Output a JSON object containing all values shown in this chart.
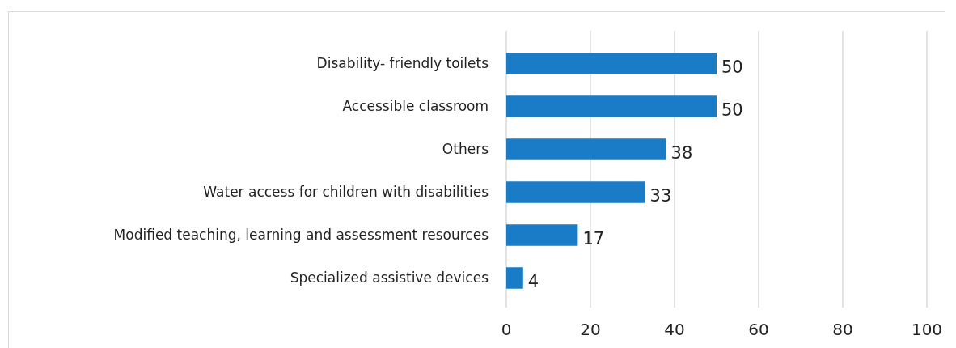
{
  "chart_data": {
    "type": "bar",
    "orientation": "horizontal",
    "categories": [
      "Disability- friendly toilets",
      "Accessible classroom",
      "Others",
      "Water access for children with disabilities",
      "Modified teaching, learning and assessment resources",
      "Specialized assistive devices"
    ],
    "values": [
      50,
      50,
      38,
      33,
      17,
      4
    ],
    "color": "#1a7cc6",
    "xlim": [
      0,
      100
    ],
    "xticks": [
      0,
      20,
      40,
      60,
      80,
      100
    ],
    "grid": "x",
    "data_labels": true
  }
}
